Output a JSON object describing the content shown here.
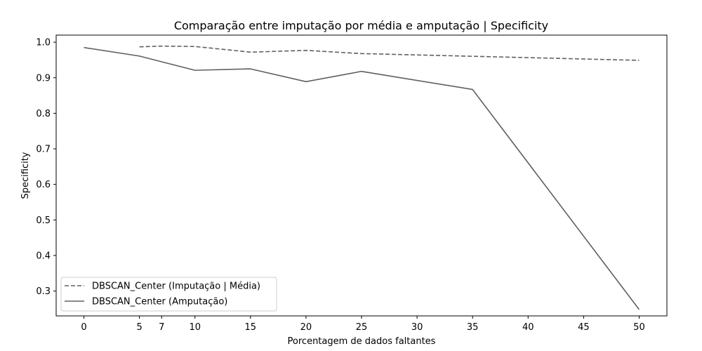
{
  "chart_data": {
    "type": "line",
    "title": "Comparação entre imputação por média e amputação | Specificity",
    "xlabel": "Porcentagem de dados faltantes",
    "ylabel": "Specificity",
    "xlim": [
      -2.5,
      52.5
    ],
    "ylim": [
      0.23,
      1.02
    ],
    "xticks": [
      0,
      5,
      7,
      10,
      15,
      20,
      25,
      30,
      35,
      40,
      45,
      50
    ],
    "xtick_labels": [
      "0",
      "5",
      "7",
      "10",
      "15",
      "20",
      "25",
      "30",
      "35",
      "40",
      "45",
      "50"
    ],
    "yticks": [
      0.3,
      0.4,
      0.5,
      0.6,
      0.7,
      0.8,
      0.9,
      1.0
    ],
    "ytick_labels": [
      "0.3",
      "0.4",
      "0.5",
      "0.6",
      "0.7",
      "0.8",
      "0.9",
      "1.0"
    ],
    "grid": false,
    "legend_position": "bottom-left",
    "series": [
      {
        "name": "DBSCAN_Center (Imputação | Média)",
        "color": "#606060",
        "dash": true,
        "x": [
          5,
          7,
          10,
          15,
          20,
          25,
          50
        ],
        "y": [
          0.987,
          0.989,
          0.988,
          0.972,
          0.977,
          0.968,
          0.949
        ]
      },
      {
        "name": "DBSCAN_Center (Amputação)",
        "color": "#606060",
        "dash": false,
        "x": [
          0,
          5,
          7,
          10,
          15,
          20,
          25,
          35,
          50
        ],
        "y": [
          0.985,
          0.961,
          0.945,
          0.921,
          0.925,
          0.889,
          0.918,
          0.867,
          0.248
        ]
      }
    ]
  }
}
